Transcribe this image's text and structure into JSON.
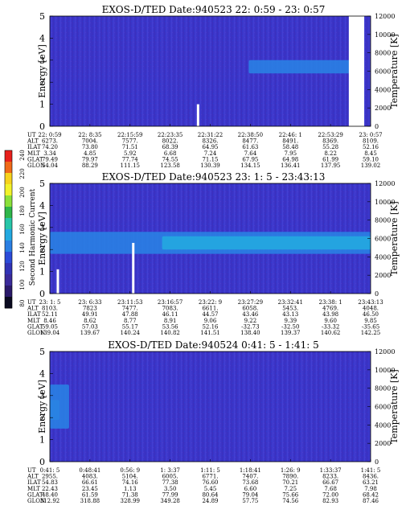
{
  "figure": {
    "colorbar": {
      "label": "Second Harmonic Current",
      "ticks": [
        "240",
        "220",
        "200",
        "180",
        "160",
        "140",
        "120",
        "100",
        "80"
      ],
      "colors": [
        "#e8201c",
        "#f06a18",
        "#f7d21c",
        "#f2f22a",
        "#8be03a",
        "#2fb64a",
        "#27c6a8",
        "#23a9e0",
        "#2a7fe3",
        "#2b4bd8",
        "#3133b6",
        "#3a2a9a",
        "#2a1a6a",
        "#0a0a20"
      ]
    },
    "ut_row_labels": [
      "UT",
      "ALT",
      "ILAT",
      "MLT",
      "GLAT",
      "GLON"
    ]
  },
  "chart_data": [
    {
      "type": "heatmap",
      "title": "EXOS-D/TED   Date:940523  22: 0:59 - 23: 0:57",
      "ylabel": "Energy [eV]",
      "y2label": "Temperature [K]",
      "ylim": [
        0,
        5
      ],
      "y2lim": [
        0,
        12000
      ],
      "yticks": [
        "0",
        "1",
        "2",
        "3",
        "4",
        "5"
      ],
      "y2ticks": [
        "0",
        "2000",
        "4000",
        "6000",
        "8000",
        "10000",
        "12000"
      ],
      "background": "#3b35c8",
      "features": [
        {
          "kind": "bright_band",
          "x": [
            0.62,
            0.95
          ],
          "y": [
            2.4,
            3.0
          ],
          "color": "#2a7fe3"
        },
        {
          "kind": "gap",
          "x": [
            0.932,
            0.98
          ]
        },
        {
          "kind": "spike",
          "x": 0.462,
          "y": [
            0,
            1.0
          ]
        }
      ],
      "columns": [
        [
          "22: 0:59",
          "6273.",
          "74.20",
          "3.34",
          "79.49",
          "54.04"
        ],
        [
          "22: 8:35",
          "7004.",
          "73.80",
          "4.85",
          "79.97",
          "88.29"
        ],
        [
          "22:15:59",
          "7577.",
          "71.51",
          "5.92",
          "77.74",
          "111.15"
        ],
        [
          "22:23:35",
          "8022.",
          "68.39",
          "6.68",
          "74.55",
          "123.58"
        ],
        [
          "22:31:22",
          "8326.",
          "64.95",
          "7.24",
          "71.15",
          "130.39"
        ],
        [
          "22:38:50",
          "8477.",
          "61.63",
          "7.64",
          "67.95",
          "134.15"
        ],
        [
          "22:46: 1",
          "8491.",
          "58.48",
          "7.95",
          "64.98",
          "136.41"
        ],
        [
          "22:53:29",
          "8369.",
          "55.28",
          "8.22",
          "61.99",
          "137.95"
        ],
        [
          "23: 0:57",
          "8109.",
          "52.16",
          "8.45",
          "59.10",
          "139.02"
        ]
      ]
    },
    {
      "type": "heatmap",
      "title": "EXOS-D/TED   Date:940523  23: 1: 5 - 23:43:13",
      "ylabel": "Energy [eV]",
      "y2label": "Temperature [K]",
      "ylim": [
        0,
        5
      ],
      "y2lim": [
        0,
        12000
      ],
      "yticks": [
        "0",
        "1",
        "2",
        "3",
        "4",
        "5"
      ],
      "y2ticks": [
        "0",
        "2000",
        "4000",
        "6000",
        "8000",
        "10000",
        "12000"
      ],
      "background": "#3b35c8",
      "features": [
        {
          "kind": "bright_band",
          "x": [
            0.0,
            1.0
          ],
          "y": [
            1.8,
            2.8
          ],
          "color": "#2a7fe3"
        },
        {
          "kind": "core_band",
          "x": [
            0.35,
            1.0
          ],
          "y": [
            2.0,
            2.6
          ],
          "color": "#23a9e0"
        },
        {
          "kind": "spike",
          "x": 0.025,
          "y": [
            0,
            1.1
          ]
        },
        {
          "kind": "spike",
          "x": 0.26,
          "y": [
            0,
            2.3
          ]
        }
      ],
      "columns": [
        [
          "23: 1: 5",
          "8103.",
          "52.11",
          "8.46",
          "59.05",
          "139.04"
        ],
        [
          "23: 6:33",
          "7823",
          "49.91",
          "8.62",
          "57.03",
          "139.67"
        ],
        [
          "23:11:53",
          "7477.",
          "47.88",
          "8.77",
          "55.17",
          "140.24"
        ],
        [
          "23:16:57",
          "7083.",
          "46.11",
          "8.91",
          "53.56",
          "140.82"
        ],
        [
          "23:22: 9",
          "6611.",
          "44.57",
          "9.06",
          "52.16",
          "141.51"
        ],
        [
          "23:27:29",
          "6058.",
          "43.46",
          "9.22",
          "-32.73",
          "138.40"
        ],
        [
          "23:32:41",
          "5453.",
          "43.13",
          "9.39",
          "-32.50",
          "139.37"
        ],
        [
          "23:38: 1",
          "4769.",
          "43.98",
          "9.60",
          "-33.32",
          "140.62"
        ],
        [
          "23:43:13",
          "4048.",
          "46.50",
          "9.85",
          "-35.65",
          "142.25"
        ]
      ]
    },
    {
      "type": "heatmap",
      "title": "EXOS-D/TED   Date:940524   0:41: 5 - 1:41: 5",
      "ylabel": "Energy [eV]",
      "y2label": "Temperature [K]",
      "ylim": [
        0,
        5
      ],
      "y2lim": [
        0,
        12000
      ],
      "yticks": [
        "0",
        "1",
        "2",
        "3",
        "4",
        "5"
      ],
      "y2ticks": [
        "0",
        "2000",
        "4000",
        "6000",
        "8000",
        "10000",
        "12000"
      ],
      "background": "#3b35c8",
      "features": [
        {
          "kind": "bright_band",
          "x": [
            0.0,
            0.03
          ],
          "y": [
            1.9,
            2.8
          ],
          "color": "#23a9e0"
        },
        {
          "kind": "bright_band",
          "x": [
            0.0,
            0.06
          ],
          "y": [
            1.5,
            3.5
          ],
          "color": "#2a7fe3"
        }
      ],
      "columns": [
        [
          "0:41: 5",
          "2955.",
          "54.83",
          "22.43",
          "48.40",
          "312.92"
        ],
        [
          "0:48:41",
          "4083.",
          "66.61",
          "23.45",
          "61.59",
          "318.88"
        ],
        [
          "0:56: 9",
          "5104.",
          "74.16",
          "1.13",
          "71.38",
          "328.99"
        ],
        [
          "1: 3:37",
          "6005.",
          "77.38",
          "3.50",
          "77.99",
          "349.28"
        ],
        [
          "1:11: 5",
          "6771.",
          "76.60",
          "5.45",
          "80.64",
          "24.89"
        ],
        [
          "1:18:41",
          "7407.",
          "73.68",
          "6.60",
          "79.04",
          "57.75"
        ],
        [
          "1:26: 9",
          "7890.",
          "70.21",
          "7.25",
          "75.66",
          "74.56"
        ],
        [
          "1:33:37",
          "8233.",
          "66.67",
          "7.68",
          "72.00",
          "82.93"
        ],
        [
          "1:41: 5",
          "8436.",
          "63.21",
          "7.98",
          "68.42",
          "87.46"
        ]
      ]
    }
  ]
}
